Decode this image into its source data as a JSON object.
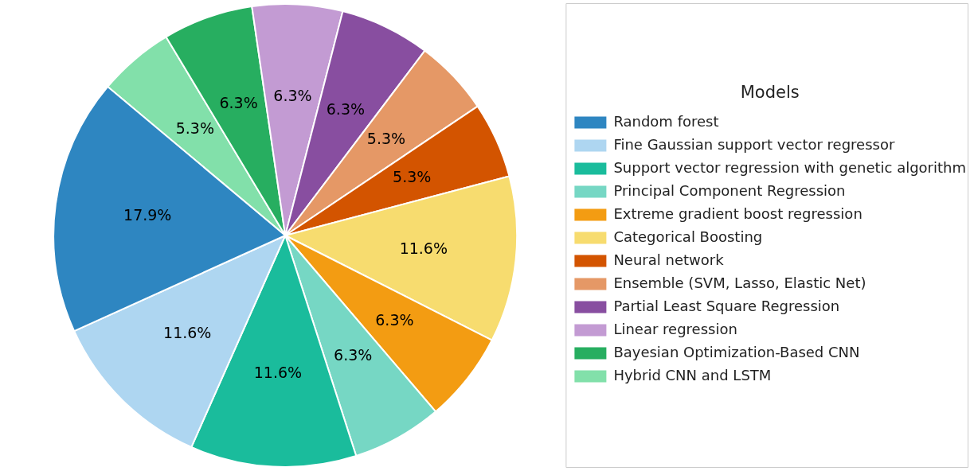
{
  "chart_data": {
    "type": "pie",
    "legend_title": "Models",
    "legend": "right",
    "categories": [
      "Random forest",
      "Fine Gaussian support vector regressor",
      "Support vector regression with genetic algorithm",
      "Principal Component Regression",
      "Extreme gradient boost regression",
      "Categorical Boosting",
      "Neural network",
      "Ensemble (SVM, Lasso, Elastic Net)",
      "Partial Least Square Regression",
      "Linear regression",
      "Bayesian Optimization-Based CNN",
      "Hybrid CNN and LSTM"
    ],
    "values": [
      17.9,
      11.6,
      11.6,
      6.3,
      6.3,
      11.6,
      5.3,
      5.3,
      6.3,
      6.3,
      6.3,
      5.3
    ],
    "value_labels": [
      "17.9%",
      "11.6%",
      "11.6%",
      "6.3%",
      "6.3%",
      "11.6%",
      "5.3%",
      "5.3%",
      "6.3%",
      "6.3%",
      "6.3%",
      "5.3%"
    ],
    "colors": [
      "#2e86c1",
      "#aed6f1",
      "#1abc9c",
      "#76d7c4",
      "#f39c12",
      "#f7dc6f",
      "#d35400",
      "#e59866",
      "#884ea0",
      "#c39bd3",
      "#27ae60",
      "#82e0aa"
    ]
  }
}
